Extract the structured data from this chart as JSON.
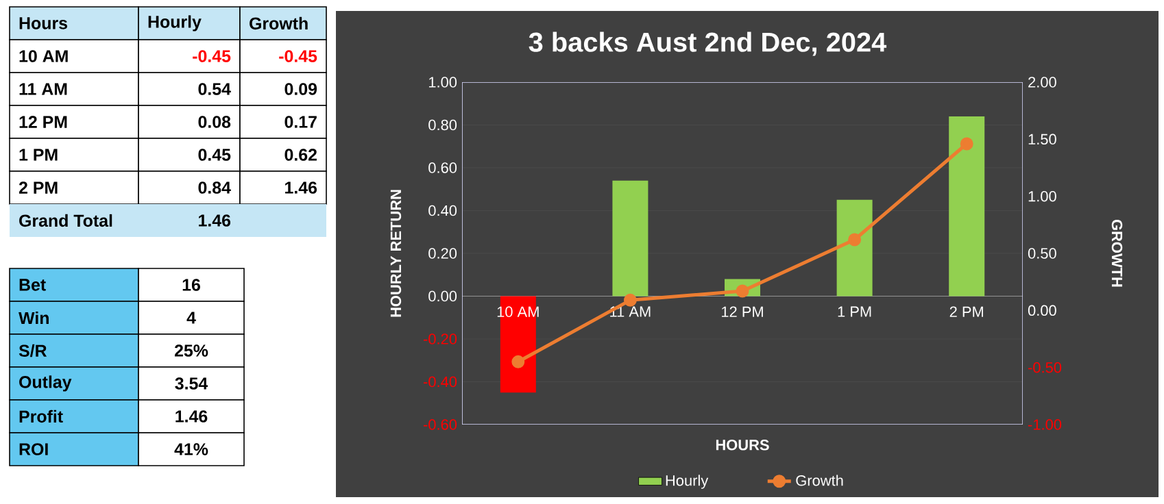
{
  "chart_data": {
    "type": "bar",
    "title": "3 backs Aust 2nd Dec, 2024",
    "xlabel": "HOURS",
    "ylabel": "HOURLY RETURN",
    "y2label": "GROWTH",
    "categories": [
      "10 AM",
      "11 AM",
      "12 PM",
      "1 PM",
      "2 PM"
    ],
    "series": [
      {
        "name": "Hourly",
        "color": "#92d050",
        "colors": [
          "#ff0000",
          "#92d050",
          "#92d050",
          "#92d050",
          "#92d050"
        ],
        "values": [
          -0.45,
          0.54,
          0.08,
          0.45,
          0.84
        ]
      },
      {
        "name": "Growth",
        "type": "line",
        "axis": "y2",
        "color": "#ed7d31",
        "marker": "circle",
        "values": [
          -0.45,
          0.09,
          0.17,
          0.62,
          1.46
        ]
      }
    ],
    "ylim": [
      -0.6,
      1.0
    ],
    "yticks": [
      {
        "value": -0.6,
        "label": "-0.60"
      },
      {
        "value": -0.4,
        "label": "-0.40"
      },
      {
        "value": -0.2,
        "label": "-0.20"
      },
      {
        "value": 0,
        "label": "0.00"
      },
      {
        "value": 0.2,
        "label": "0.20"
      },
      {
        "value": 0.4,
        "label": "0.40"
      },
      {
        "value": 0.6,
        "label": "0.60"
      },
      {
        "value": 0.8,
        "label": "0.80"
      },
      {
        "value": 1.0,
        "label": "1.00"
      }
    ],
    "y2lim": [
      -1.0,
      2.0
    ],
    "y2ticks": [
      {
        "value": -1.0,
        "label": "-1.00"
      },
      {
        "value": -0.5,
        "label": "-0.50"
      },
      {
        "value": 0,
        "label": "0.00"
      },
      {
        "value": 0.5,
        "label": "0.50"
      },
      {
        "value": 1.0,
        "label": "1.00"
      },
      {
        "value": 1.5,
        "label": "1.50"
      },
      {
        "value": 2.0,
        "label": "2.00"
      }
    ],
    "grid": "y",
    "legend": "bottom",
    "annotations": [
      "Hours",
      "-0.45",
      "-0.45",
      "0.54",
      "0.09",
      "0.08",
      "0.17",
      "0.45",
      "0.62",
      "0.84",
      "1.46",
      "Grand Total",
      "1.46",
      "Bet",
      "16",
      "Win",
      "4",
      "S/R",
      "25%",
      "Outlay",
      "3.54",
      "Profit",
      "1.46",
      "ROI",
      "41%"
    ]
  }
}
